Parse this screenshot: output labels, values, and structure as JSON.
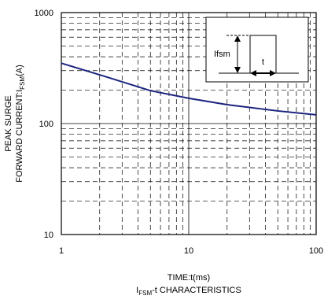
{
  "chart_data": {
    "type": "line",
    "ylabel_lines": [
      "PEAK SURGE",
      [
        "FORWARD CURRENT:I",
        "FSM",
        "(A)"
      ]
    ],
    "xlabel": "TIME:t(ms)",
    "caption": [
      "I",
      "FSM",
      "-t CHARACTERISTICS"
    ],
    "inset": {
      "amplitude_label": "Ifsm",
      "width_label": "t"
    },
    "x": [
      1,
      2,
      5,
      10,
      20,
      50,
      100
    ],
    "series": [
      {
        "color": "#1a237e",
        "values": [
          350,
          275,
          198,
          169,
          148,
          130,
          120
        ]
      }
    ],
    "xlim": [
      1,
      100
    ],
    "ylim": [
      10,
      1000
    ],
    "xticks": [
      1,
      10,
      100
    ],
    "yticks": [
      10,
      100,
      1000
    ],
    "xminorticks": [
      2,
      3,
      4,
      5,
      6,
      7,
      8,
      9,
      20,
      30,
      40,
      50,
      60,
      70,
      80,
      90
    ],
    "yminorticks": [
      20,
      30,
      40,
      50,
      60,
      70,
      80,
      90,
      200,
      300,
      400,
      500,
      600,
      700,
      800,
      900
    ],
    "xlog": true,
    "ylog": true,
    "grid": true
  }
}
